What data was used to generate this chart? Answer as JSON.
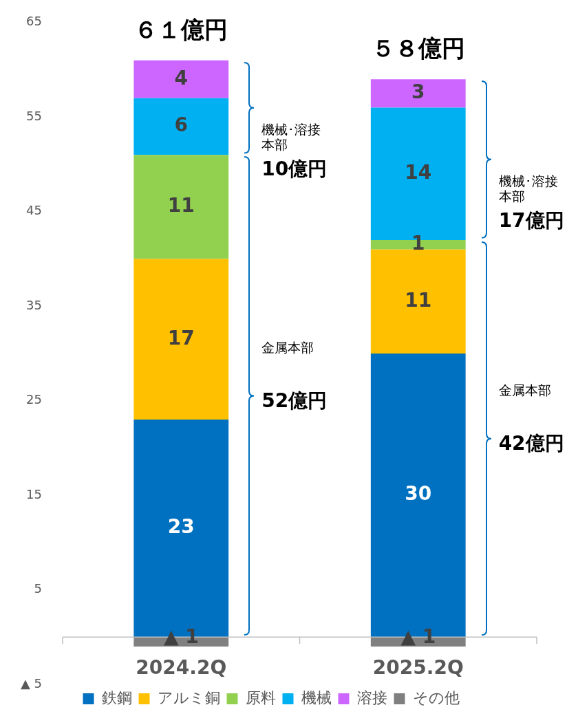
{
  "chart_data": {
    "type": "bar",
    "categories": [
      "2024.2Q",
      "2025.2Q"
    ],
    "stacked": true,
    "series": [
      {
        "name": "鉄鋼",
        "color": "#0070c0",
        "values": [
          23,
          30
        ],
        "value_labels": [
          "23",
          "30"
        ]
      },
      {
        "name": "アルミ銅",
        "color": "#ffc000",
        "values": [
          17,
          11
        ],
        "value_labels": [
          "17",
          "11"
        ]
      },
      {
        "name": "原料",
        "color": "#92d050",
        "values": [
          11,
          1
        ],
        "value_labels": [
          "11",
          "1"
        ]
      },
      {
        "name": "機械",
        "color": "#00b0f0",
        "values": [
          6,
          14
        ],
        "value_labels": [
          "6",
          "14"
        ]
      },
      {
        "name": "溶接",
        "color": "#cc66ff",
        "values": [
          4,
          3
        ],
        "value_labels": [
          "4",
          "3"
        ]
      },
      {
        "name": "その他",
        "color": "#808080",
        "values": [
          -1,
          -1
        ]
      }
    ],
    "totals": [
      "６１億円",
      "５８億円"
    ],
    "ylim": [
      -5,
      65
    ],
    "yticks": [
      {
        "value": -5,
        "label": "▲ 5"
      },
      5,
      15,
      25,
      35,
      45,
      55,
      65
    ],
    "grid": false,
    "legend": "bottom",
    "annotations": [
      "機械･溶接本部",
      "10億円",
      "金属本部",
      "52億円",
      "機械･溶接本部",
      "17億円",
      "金属本部",
      "42億円",
      {
        "text": "▲ 1",
        "x": "2024.2Q",
        "y": -1
      },
      {
        "text": "▲ 1",
        "x": "2025.2Q",
        "y": -1
      }
    ]
  }
}
